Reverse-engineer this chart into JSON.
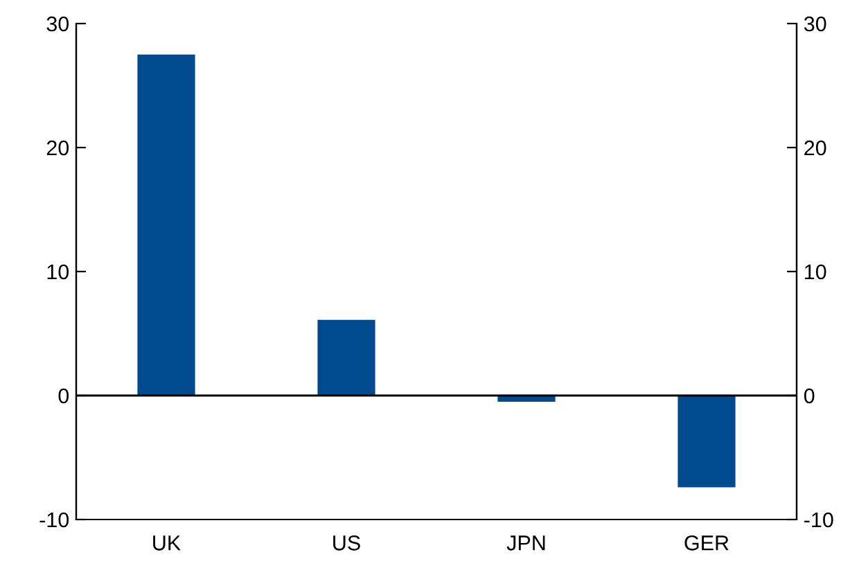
{
  "chart_data": {
    "type": "bar",
    "categories": [
      "UK",
      "US",
      "JPN",
      "GER"
    ],
    "values": [
      27.5,
      6.1,
      -0.5,
      -7.4
    ],
    "color": "#004a8f",
    "ylim": [
      -10,
      30
    ],
    "yticks": [
      -10,
      0,
      10,
      20,
      30
    ],
    "y2lim": [
      -10,
      30
    ],
    "y2ticks": [
      -10,
      0,
      10,
      20,
      30
    ],
    "ref_lines": [
      {
        "axis": "y",
        "value": 0,
        "color": "#000000"
      }
    ],
    "grid": false,
    "legend": false
  }
}
